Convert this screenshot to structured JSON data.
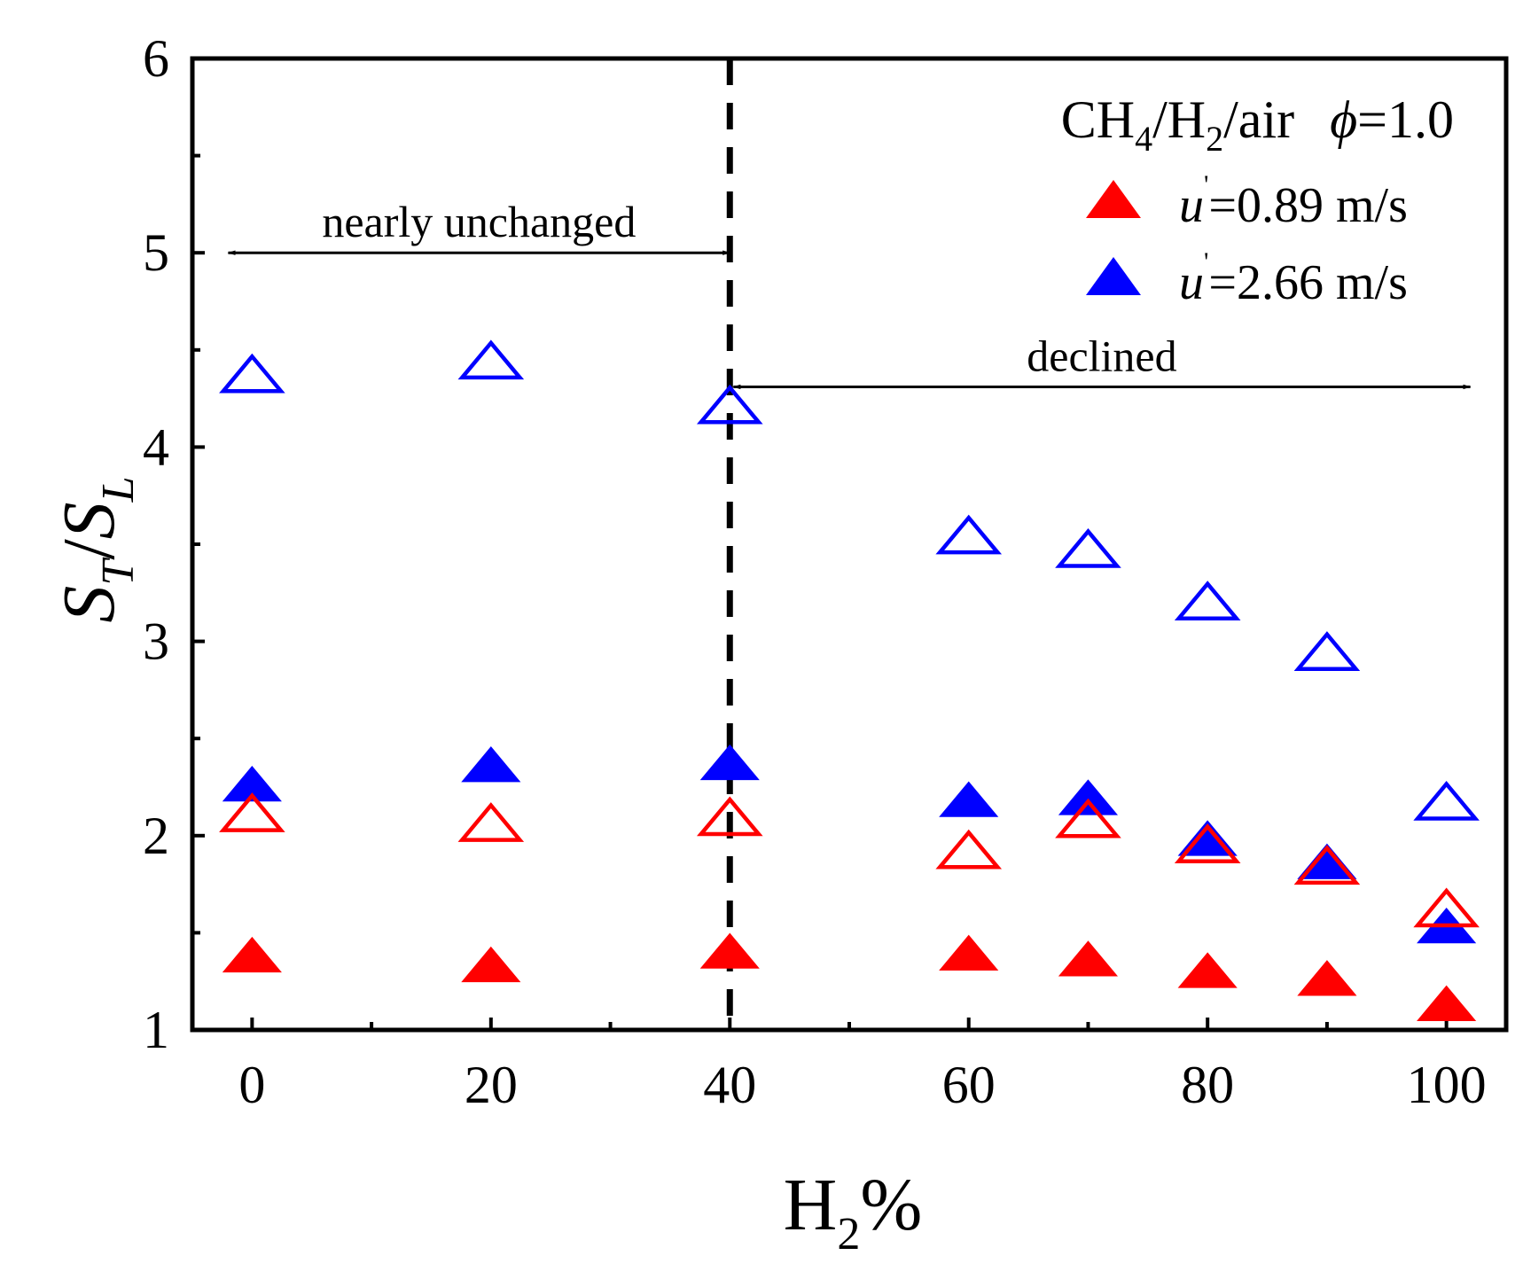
{
  "chart_data": {
    "type": "scatter",
    "title": "",
    "xlabel": {
      "main": "H",
      "sub": "2",
      "suffix": "%"
    },
    "ylabel": {
      "s1": "S",
      "sub1": "T",
      "slash": "/",
      "s2": "S",
      "sub2": "L"
    },
    "xlim": [
      -5,
      105
    ],
    "ylim": [
      1,
      6
    ],
    "x_ticks": [
      0,
      20,
      40,
      60,
      80,
      100
    ],
    "x_tick_labels": [
      "0",
      "20",
      "40",
      "60",
      "80",
      "100"
    ],
    "x_minor_ticks": [
      10,
      30,
      50,
      70,
      90
    ],
    "y_ticks": [
      1,
      2,
      3,
      4,
      5,
      6
    ],
    "y_tick_labels": [
      "1",
      "2",
      "3",
      "4",
      "5",
      "6"
    ],
    "y_minor_ticks": [
      1.5,
      2.5,
      3.5,
      4.5,
      5.5
    ],
    "legend": {
      "position": "top-right",
      "title": {
        "a": "CH",
        "a_sub": "4",
        "b": "/H",
        "b_sub": "2",
        "c": "/air",
        "phi": "ϕ",
        "phi_val": "=1.0"
      },
      "entries": [
        {
          "symbol": "u",
          "prime": "'",
          "text": "=0.89 m/s",
          "color": "#ff0000"
        },
        {
          "symbol": "u",
          "prime": "'",
          "text": "=2.66 m/s",
          "color": "#0000ff"
        }
      ]
    },
    "series": [
      {
        "name": "u'=0.89 m/s filled",
        "marker": "triangle-filled",
        "color": "#ff0000",
        "x": [
          0,
          20,
          40,
          60,
          70,
          80,
          90,
          100
        ],
        "y": [
          1.37,
          1.32,
          1.39,
          1.38,
          1.35,
          1.29,
          1.25,
          1.12
        ]
      },
      {
        "name": "u'=2.66 m/s filled",
        "marker": "triangle-filled",
        "color": "#0000ff",
        "x": [
          0,
          20,
          40,
          60,
          70,
          80,
          90,
          100
        ],
        "y": [
          2.25,
          2.35,
          2.36,
          2.17,
          2.18,
          1.97,
          1.85,
          1.52
        ]
      },
      {
        "name": "u'=0.89 m/s open",
        "marker": "triangle-open",
        "color": "#ff0000",
        "x": [
          0,
          20,
          40,
          60,
          70,
          80,
          90,
          100
        ],
        "y": [
          2.1,
          2.05,
          2.08,
          1.91,
          2.07,
          1.94,
          1.83,
          1.61
        ]
      },
      {
        "name": "u'=2.66 m/s open",
        "marker": "triangle-open",
        "color": "#0000ff",
        "x": [
          0,
          20,
          40,
          60,
          70,
          80,
          90,
          100
        ],
        "y": [
          4.36,
          4.43,
          4.2,
          3.53,
          3.46,
          3.19,
          2.93,
          2.16
        ]
      }
    ],
    "reference_line": {
      "x": 40,
      "style": "dashed",
      "color": "#000000"
    },
    "annotations": [
      {
        "text": "nearly unchanged",
        "from_x": -2,
        "to_x": 40,
        "y": 5.0
      },
      {
        "text": "declined",
        "from_x": 40.3,
        "to_x": 102,
        "y": 4.31
      }
    ]
  }
}
